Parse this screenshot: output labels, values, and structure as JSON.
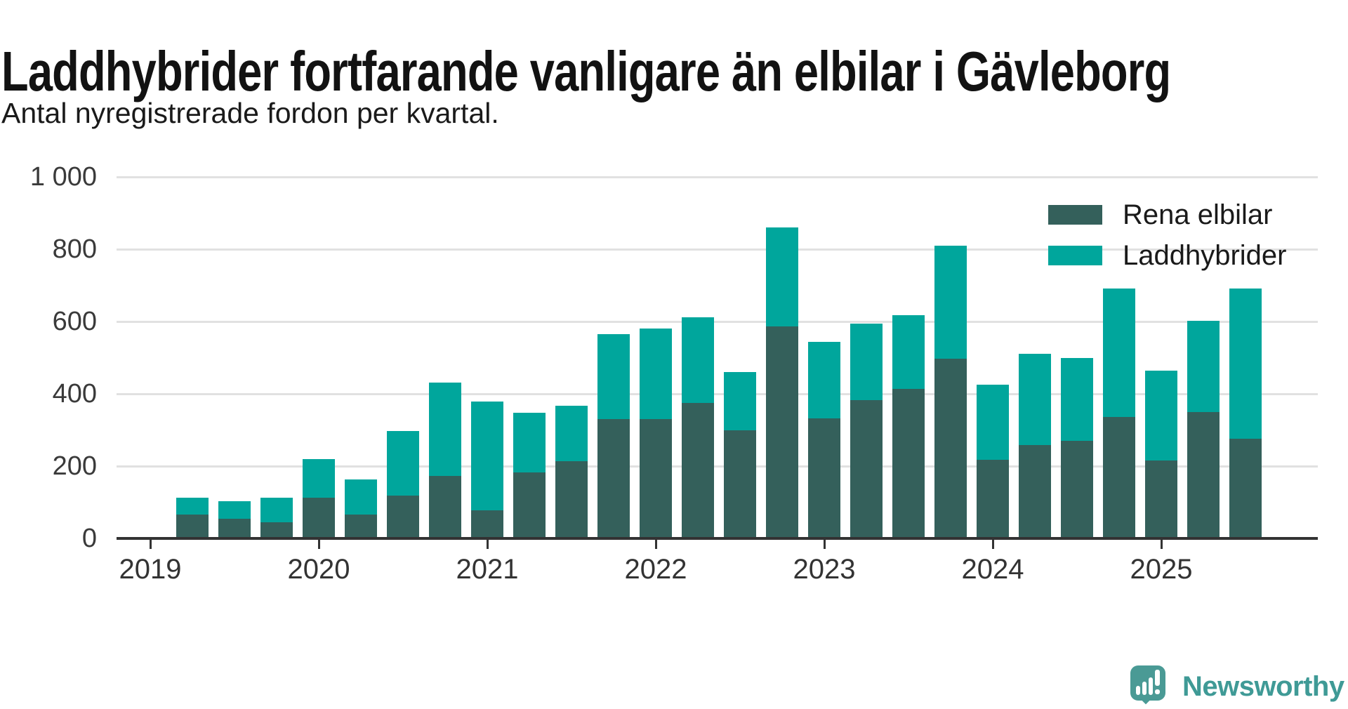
{
  "title": "Laddhybrider fortfarande vanligare än elbilar i Gävleborg",
  "subtitle": "Antal nyregistrerade fordon per kvartal.",
  "legend": {
    "items": [
      {
        "label": "Rena elbilar",
        "color": "#34605b"
      },
      {
        "label": "Laddhybrider",
        "color": "#00a69c"
      }
    ]
  },
  "chart_data": {
    "type": "bar",
    "stacked": true,
    "title": "Laddhybrider fortfarande vanligare än elbilar i Gävleborg",
    "subtitle": "Antal nyregistrerade fordon per kvartal.",
    "x": [
      "2019-Q2",
      "2019-Q3",
      "2019-Q4",
      "2020-Q1",
      "2020-Q2",
      "2020-Q3",
      "2020-Q4",
      "2021-Q1",
      "2021-Q2",
      "2021-Q3",
      "2021-Q4",
      "2022-Q1",
      "2022-Q2",
      "2022-Q3",
      "2022-Q4",
      "2023-Q1",
      "2023-Q2",
      "2023-Q3",
      "2023-Q4",
      "2024-Q1",
      "2024-Q2",
      "2024-Q3",
      "2024-Q4",
      "2025-Q1",
      "2025-Q2",
      "2025-Q3"
    ],
    "series": [
      {
        "name": "Rena elbilar",
        "color": "#34605b",
        "values": [
          67,
          55,
          45,
          112,
          66,
          118,
          172,
          78,
          182,
          213,
          330,
          330,
          374,
          300,
          586,
          333,
          382,
          414,
          498,
          218,
          258,
          270,
          336,
          216,
          350,
          276
        ]
      },
      {
        "name": "Laddhybrider",
        "color": "#00a69c",
        "values": [
          45,
          47,
          68,
          107,
          97,
          180,
          260,
          300,
          166,
          155,
          236,
          250,
          238,
          160,
          274,
          210,
          212,
          204,
          312,
          208,
          253,
          230,
          356,
          248,
          252,
          415
        ]
      }
    ],
    "ylim": [
      0,
      1000
    ],
    "yticks": [
      0,
      200,
      400,
      600,
      800,
      1000
    ],
    "ytick_labels": [
      "0",
      "200",
      "400",
      "600",
      "800",
      "1 000"
    ],
    "xticks": [
      "2019",
      "2020",
      "2021",
      "2022",
      "2023",
      "2024",
      "2025"
    ],
    "grid": "horizontal",
    "legend_position": "top-right"
  },
  "branding": {
    "name": "Newsworthy",
    "color": "#3f9a96"
  }
}
